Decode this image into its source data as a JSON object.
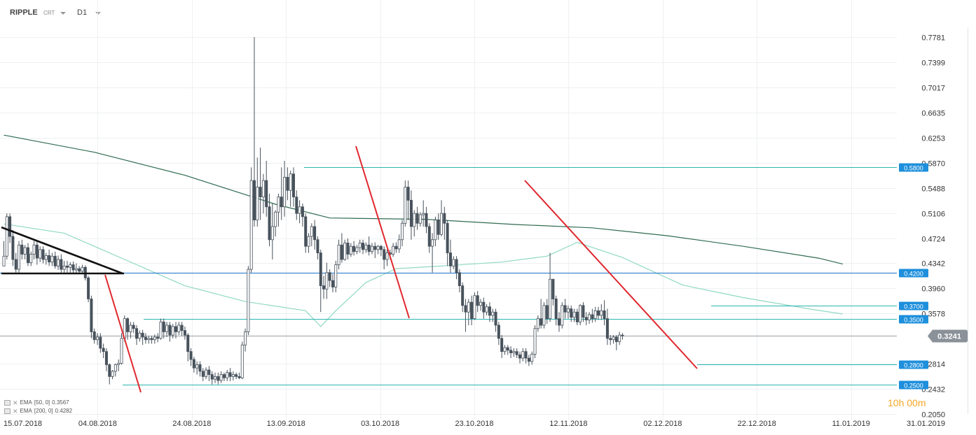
{
  "toolbar": {
    "symbol": "RIPPLE",
    "type": "CRT",
    "timeframe": "D1"
  },
  "indicators": [
    {
      "label": "EMA",
      "params": "[50, 0]",
      "value": "0.3567"
    },
    {
      "label": "EMA",
      "params": "[200, 0]",
      "value": "0.4282"
    }
  ],
  "timer": {
    "h": "10",
    "h_unit": "h",
    "m": "00",
    "m_unit": "m"
  },
  "colors": {
    "ema50": "#8fd9c4",
    "ema200": "#2f6b50",
    "hline": "#2bb5b0",
    "blueline": "#1a73c9",
    "red": "#e0282e",
    "candle": "#48525c",
    "tag": "#1e8fdc",
    "price_tag": "#8a9199"
  },
  "chart_data": {
    "type": "candlestick",
    "y_ticks": [
      "0.7781",
      "0.7399",
      "0.7017",
      "0.6635",
      "0.6253",
      "0.5870",
      "0.5488",
      "0.5106",
      "0.4724",
      "0.4342",
      "0.3960",
      "0.3578",
      "0.2814",
      "0.2432",
      "0.2050"
    ],
    "x_ticks": [
      "15.07.2018",
      "04.08.2018",
      "24.08.2018",
      "13.09.2018",
      "03.10.2018",
      "23.10.2018",
      "12.11.2018",
      "02.12.2018",
      "22.12.2018",
      "11.01.2019",
      "31.01.2019"
    ],
    "ylim": [
      0.205,
      0.7781
    ],
    "current_price": "0.3241",
    "levels": [
      {
        "value": 0.58,
        "label": "0.5800"
      },
      {
        "value": 0.42,
        "label": "0.4200"
      },
      {
        "value": 0.37,
        "label": "0.3700"
      },
      {
        "value": 0.35,
        "label": "0.3500"
      },
      {
        "value": 0.28,
        "label": "0.2800"
      },
      {
        "value": 0.25,
        "label": "0.2500"
      }
    ],
    "ema50": [
      [
        0,
        0.494
      ],
      [
        20,
        0.48
      ],
      [
        40,
        0.44
      ],
      [
        60,
        0.4
      ],
      [
        80,
        0.376
      ],
      [
        100,
        0.362
      ],
      [
        105,
        0.338
      ],
      [
        110,
        0.362
      ],
      [
        120,
        0.405
      ],
      [
        130,
        0.426
      ],
      [
        145,
        0.43
      ],
      [
        165,
        0.436
      ],
      [
        180,
        0.445
      ],
      [
        190,
        0.466
      ],
      [
        205,
        0.443
      ],
      [
        225,
        0.401
      ],
      [
        245,
        0.382
      ],
      [
        268,
        0.364
      ],
      [
        278,
        0.357
      ]
    ],
    "ema200": [
      [
        0,
        0.629
      ],
      [
        30,
        0.603
      ],
      [
        60,
        0.568
      ],
      [
        90,
        0.524
      ],
      [
        108,
        0.503
      ],
      [
        140,
        0.501
      ],
      [
        170,
        0.493
      ],
      [
        195,
        0.488
      ],
      [
        220,
        0.476
      ],
      [
        245,
        0.46
      ],
      [
        270,
        0.442
      ],
      [
        278,
        0.433
      ]
    ],
    "candles_tsv": "0.430,0.445,0.430,0.468|0.445,0.505,0.440,0.510|0.505,0.475,0.465,0.510|0.475,0.440,0.430,0.485|0.440,0.425,0.420,0.450|0.425,0.462,0.420,0.468|0.462,0.448,0.440,0.470|0.448,0.458,0.440,0.462|0.458,0.435,0.430,0.465|0.435,0.448,0.430,0.452|0.448,0.462,0.440,0.468|0.462,0.442,0.432,0.468|0.442,0.455,0.436,0.460|0.455,0.440,0.434,0.460|0.440,0.446,0.432,0.450|0.446,0.436,0.430,0.455|0.436,0.445,0.430,0.450|0.445,0.430,0.426,0.452|0.430,0.440,0.424,0.446|0.440,0.425,0.420,0.448|0.425,0.430,0.420,0.438|0.430,0.428,0.420,0.438|0.428,0.432,0.420,0.436|0.432,0.424,0.418,0.437|0.424,0.426,0.418,0.434|0.426,0.422,0.418,0.430|0.422,0.428,0.418,0.432|0.428,0.412,0.408,0.431|0.412,0.380,0.375,0.415|0.380,0.330,0.320,0.385|0.330,0.318,0.312,0.335|0.318,0.322,0.310,0.328|0.322,0.305,0.298,0.328|0.305,0.300,0.290,0.312|0.300,0.280,0.270,0.305|0.280,0.262,0.250,0.282|0.262,0.270,0.258,0.272|0.270,0.280,0.262,0.282|0.280,0.282,0.270,0.288|0.282,0.320,0.280,0.328|0.320,0.350,0.315,0.355|0.350,0.330,0.318,0.352|0.330,0.340,0.320,0.345|0.340,0.335,0.328,0.345|0.335,0.320,0.310,0.340|0.320,0.328,0.315,0.332|0.328,0.322,0.310,0.333|0.322,0.318,0.312,0.328|0.318,0.320,0.312,0.324|0.320,0.318,0.312,0.324|0.318,0.322,0.312,0.326|0.322,0.320,0.314,0.328|0.320,0.345,0.318,0.350|0.345,0.330,0.320,0.350|0.330,0.340,0.322,0.345|0.340,0.325,0.315,0.345|0.325,0.338,0.320,0.342|0.338,0.330,0.320,0.345|0.330,0.340,0.325,0.345|0.340,0.332,0.324,0.345|0.332,0.325,0.318,0.338|0.325,0.300,0.285,0.328|0.300,0.288,0.278,0.305|0.288,0.275,0.268,0.292|0.275,0.280,0.265,0.285|0.280,0.270,0.262,0.285|0.270,0.262,0.255,0.275|0.262,0.272,0.258,0.276|0.272,0.265,0.255,0.278|0.265,0.258,0.250,0.270|0.258,0.262,0.252,0.268|0.262,0.256,0.250,0.268|0.256,0.265,0.252,0.270|0.265,0.260,0.255,0.268|0.260,0.268,0.255,0.272|0.268,0.262,0.255,0.275|0.262,0.265,0.256,0.270|0.265,0.262,0.258,0.268|0.262,0.260,0.258,0.268|0.260,0.310,0.258,0.315|0.310,0.330,0.300,0.335|0.330,0.425,0.325,0.430|0.425,0.560,0.420,0.580|0.560,0.500,0.490,0.778|0.500,0.550,0.490,0.595|0.550,0.535,0.500,0.610|0.535,0.560,0.510,0.570|0.560,0.520,0.505,0.590|0.520,0.470,0.460,0.540|0.470,0.490,0.440,0.525|0.490,0.512,0.475,0.515|0.512,0.535,0.490,0.540|0.535,0.520,0.500,0.580|0.520,0.565,0.505,0.590|0.565,0.545,0.530,0.580|0.545,0.570,0.520,0.575|0.570,0.535,0.520,0.580|0.535,0.510,0.500,0.545|0.510,0.520,0.495,0.530|0.520,0.505,0.490,0.525|0.505,0.460,0.450,0.510|0.460,0.475,0.450,0.480|0.475,0.490,0.460,0.495|0.490,0.470,0.455,0.500|0.470,0.450,0.440,0.475|0.450,0.400,0.360,0.455|0.400,0.395,0.380,0.415|0.395,0.420,0.380,0.435|0.420,0.408,0.398,0.425|0.408,0.398,0.390,0.418|0.398,0.432,0.390,0.438|0.432,0.462,0.425,0.470|0.462,0.440,0.435,0.480|0.440,0.465,0.438,0.470|0.465,0.448,0.440,0.472|0.448,0.460,0.444,0.465|0.460,0.452,0.446,0.468|0.452,0.458,0.448,0.462|0.458,0.465,0.450,0.470|0.465,0.455,0.448,0.470|0.455,0.462,0.450,0.466|0.462,0.452,0.446,0.475|0.452,0.460,0.448,0.465|0.460,0.455,0.442,0.466|0.455,0.460,0.448,0.462|0.460,0.455,0.445,0.462|0.455,0.440,0.425,0.460|0.440,0.450,0.430,0.455|0.450,0.448,0.440,0.455|0.448,0.460,0.444,0.465|0.460,0.456,0.450,0.466|0.456,0.470,0.450,0.478|0.470,0.495,0.460,0.500|0.495,0.550,0.490,0.560|0.550,0.530,0.500,0.560|0.530,0.490,0.470,0.545|0.490,0.510,0.475,0.515|0.510,0.495,0.485,0.520|0.495,0.508,0.490,0.512|0.508,0.510,0.490,0.530|0.510,0.490,0.480,0.520|0.490,0.460,0.450,0.495|0.460,0.470,0.420,0.480|0.470,0.500,0.460,0.505|0.500,0.478,0.470,0.510|0.478,0.510,0.475,0.530|0.510,0.495,0.470,0.520|0.495,0.450,0.430,0.500|0.450,0.430,0.420,0.470|0.430,0.440,0.425,0.445|0.440,0.420,0.410,0.445|0.420,0.400,0.390,0.425|0.400,0.370,0.360,0.405|0.370,0.360,0.330,0.380|0.360,0.375,0.340,0.380|0.375,0.350,0.340,0.385|0.350,0.385,0.348,0.390|0.385,0.370,0.360,0.392|0.370,0.375,0.362,0.380|0.375,0.360,0.350,0.382|0.360,0.368,0.355,0.372|0.368,0.355,0.345,0.375|0.355,0.360,0.345,0.365|0.360,0.340,0.330,0.365|0.340,0.320,0.310,0.345|0.320,0.300,0.290,0.325|0.300,0.306,0.295,0.310|0.306,0.302,0.295,0.310|0.302,0.298,0.290,0.308|0.298,0.300,0.292,0.305|0.300,0.295,0.290,0.305|0.295,0.290,0.282,0.300|0.290,0.300,0.285,0.305|0.300,0.290,0.282,0.305|0.290,0.285,0.278,0.295|0.285,0.296,0.280,0.300|0.296,0.335,0.290,0.340|0.335,0.350,0.330,0.355|0.350,0.340,0.335,0.380|0.340,0.370,0.335,0.375|0.370,0.350,0.342,0.380|0.350,0.410,0.345,0.450|0.410,0.380,0.370,0.410|0.380,0.350,0.340,0.385|0.350,0.340,0.330,0.360|0.340,0.370,0.335,0.375|0.370,0.360,0.350,0.380|0.360,0.365,0.350,0.370|0.365,0.352,0.345,0.370|0.352,0.360,0.345,0.365|0.360,0.345,0.340,0.365|0.345,0.370,0.340,0.372|0.370,0.352,0.345,0.375|0.352,0.348,0.340,0.360|0.348,0.356,0.342,0.360|0.356,0.350,0.344,0.365|0.350,0.362,0.345,0.368|0.362,0.355,0.348,0.368|0.355,0.362,0.348,0.372|0.362,0.350,0.340,0.378|0.350,0.320,0.310,0.365|0.320,0.318,0.310,0.325|0.318,0.322,0.312,0.325|0.322,0.315,0.302,0.325|0.315,0.325,0.310,0.330|0.325,0.324,0.318,0.328"
  }
}
